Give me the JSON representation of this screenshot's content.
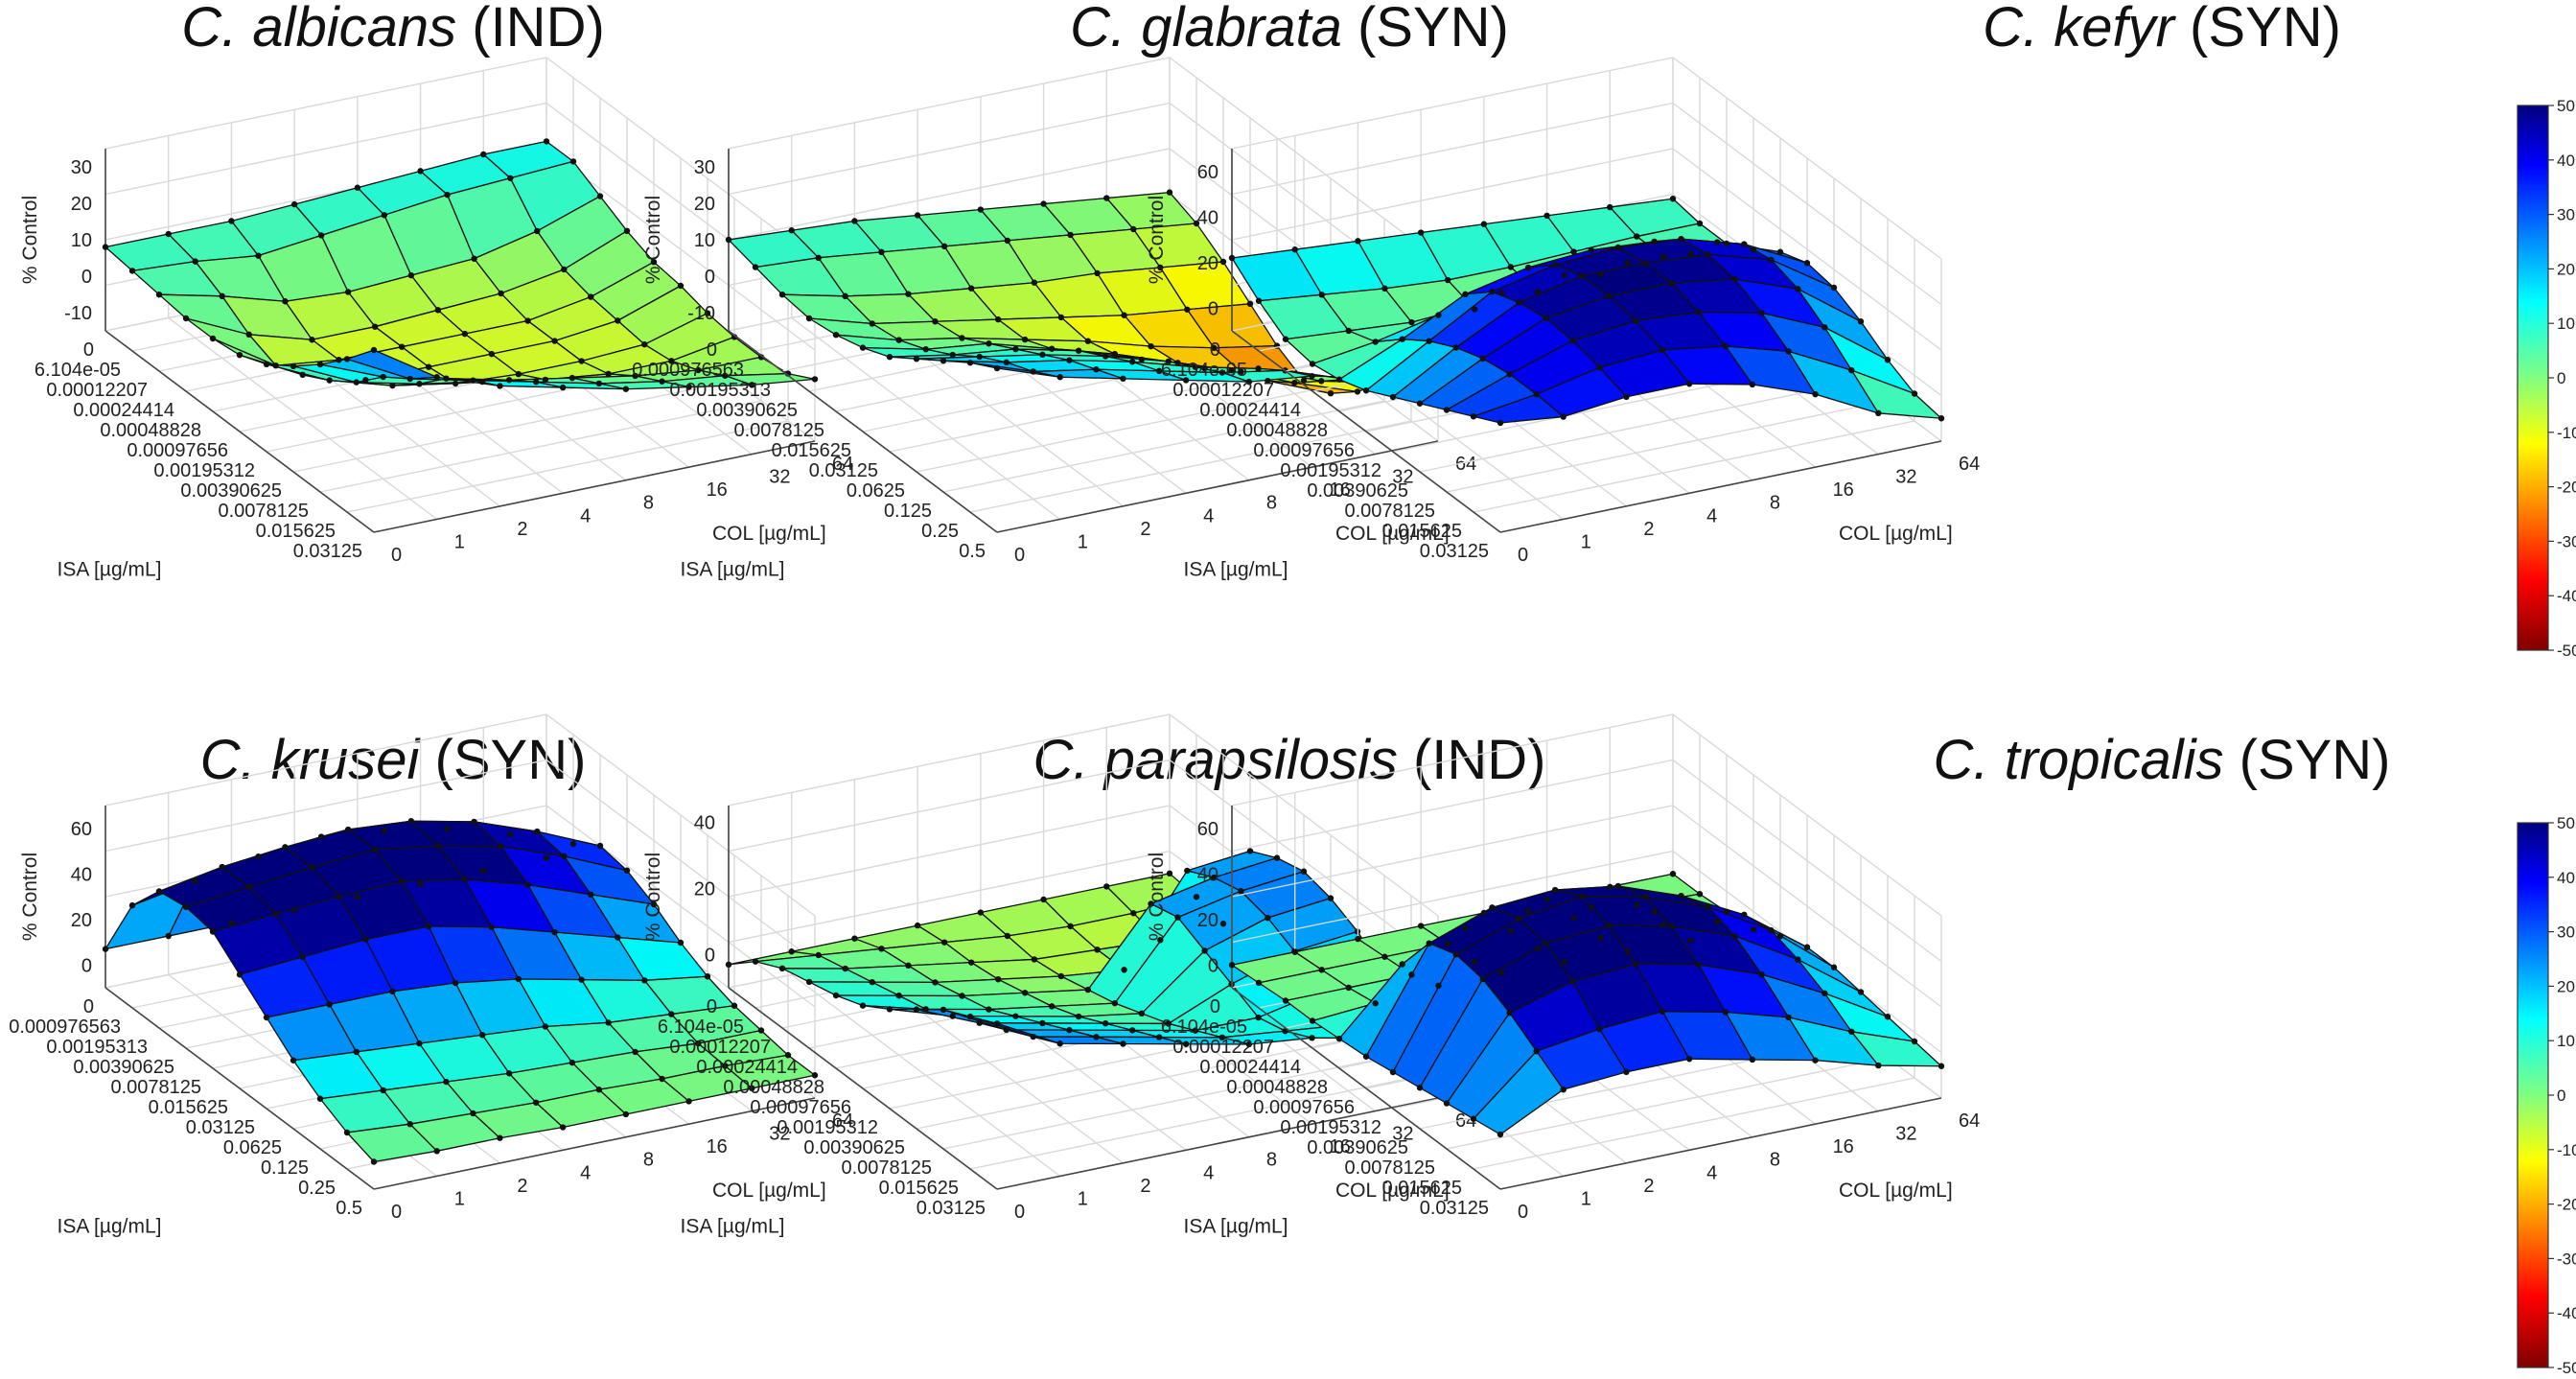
{
  "figure": {
    "colorbar": {
      "min": -50,
      "max": 50,
      "ticks": [
        50,
        40,
        30,
        20,
        10,
        0,
        -10,
        -20,
        -30,
        -40,
        -50
      ]
    }
  },
  "chart_data": [
    {
      "type": "surface3d",
      "title_species": "C. albicans",
      "title_code": "(IND)",
      "zlabel": "% Control",
      "xlabel": "ISA [µg/mL]",
      "ylabel": "COL [µg/mL]",
      "x_ticks": [
        "0",
        "6.104e-05",
        "0.00012207",
        "0.00024414",
        "0.00048828",
        "0.00097656",
        "0.00195312",
        "0.00390625",
        "0.0078125",
        "0.015625",
        "0.03125"
      ],
      "y_ticks": [
        "0",
        "1",
        "2",
        "4",
        "8",
        "16",
        "32",
        "64"
      ],
      "z_ticks": [
        30,
        20,
        10,
        0,
        -10
      ],
      "z_range": [
        -15,
        35
      ],
      "z": [
        [
          8,
          7,
          6,
          5,
          5,
          6,
          9,
          14,
          20,
          27,
          35
        ],
        [
          8,
          6,
          2,
          -3,
          -6,
          -3,
          1,
          6,
          13,
          18,
          24
        ],
        [
          8,
          4,
          -3,
          -8,
          -8,
          -8,
          -4,
          2,
          9,
          14,
          18
        ],
        [
          9,
          6,
          -4,
          -8,
          -8,
          -8,
          -7,
          -1,
          5,
          10,
          14
        ],
        [
          10,
          8,
          -3,
          -7,
          -8,
          -8,
          -8,
          -4,
          2,
          6,
          10
        ],
        [
          11,
          10,
          -2,
          -6,
          -8,
          -8,
          -8,
          -6,
          -1,
          3,
          7
        ],
        [
          12,
          11,
          2,
          -3,
          -5,
          -6,
          -7,
          -6,
          -3,
          1,
          4
        ],
        [
          12,
          12,
          8,
          4,
          1,
          0,
          -2,
          -3,
          -3,
          -2,
          2
        ]
      ]
    },
    {
      "type": "surface3d",
      "title_species": "C. glabrata",
      "title_code": "(SYN)",
      "zlabel": "% Control",
      "xlabel": "ISA [µg/mL]",
      "ylabel": "COL [µg/mL]",
      "x_ticks": [
        "0",
        "0.000976563",
        "0.00195313",
        "0.00390625",
        "0.0078125",
        "0.015625",
        "0.03125",
        "0.0625",
        "0.125",
        "0.25",
        "0.5"
      ],
      "y_ticks": [
        "0",
        "1",
        "2",
        "4",
        "8",
        "16",
        "32",
        "64"
      ],
      "z_ticks": [
        30,
        20,
        10,
        0,
        -10
      ],
      "z_range": [
        -15,
        35
      ],
      "z": [
        [
          10,
          8,
          6,
          5,
          6,
          8,
          11,
          16,
          21,
          26,
          30
        ],
        [
          9,
          7,
          2,
          0,
          1,
          4,
          8,
          13,
          17,
          20,
          24
        ],
        [
          8,
          5,
          -1,
          -3,
          -2,
          2,
          6,
          10,
          14,
          17,
          20
        ],
        [
          6,
          3,
          -3,
          -6,
          -6,
          -3,
          2,
          6,
          10,
          13,
          16
        ],
        [
          4,
          1,
          -5,
          -9,
          -10,
          -8,
          -4,
          1,
          5,
          9,
          12
        ],
        [
          2,
          -1,
          -6,
          -12,
          -15,
          -14,
          -10,
          -5,
          1,
          6,
          10
        ],
        [
          0,
          -3,
          -8,
          -14,
          -19,
          -20,
          -17,
          -12,
          -6,
          0,
          6
        ],
        [
          -2,
          -5,
          -10,
          -16,
          -22,
          -26,
          -24,
          -18,
          -10,
          -3,
          4
        ]
      ]
    },
    {
      "type": "surface3d",
      "title_species": "C. kefyr",
      "title_code": "(SYN)",
      "zlabel": "% Control",
      "xlabel": "ISA [µg/mL]",
      "ylabel": "COL [µg/mL]",
      "x_ticks": [
        "0",
        "6.104e-05",
        "0.00012207",
        "0.00024414",
        "0.00048828",
        "0.00097656",
        "0.00195312",
        "0.00390625",
        "0.0078125",
        "0.015625",
        "0.03125"
      ],
      "y_ticks": [
        "0",
        "1",
        "2",
        "4",
        "8",
        "16",
        "32",
        "64"
      ],
      "z_ticks": [
        60,
        40,
        20,
        0
      ],
      "z_range": [
        -10,
        70
      ],
      "z": [
        [
          22,
          12,
          4,
          2,
          4,
          8,
          14,
          20,
          26,
          32,
          38
        ],
        [
          20,
          9,
          2,
          6,
          16,
          24,
          30,
          34,
          36,
          36,
          35
        ],
        [
          18,
          6,
          0,
          12,
          30,
          40,
          44,
          46,
          45,
          42,
          38
        ],
        [
          16,
          4,
          0,
          16,
          36,
          46,
          50,
          50,
          48,
          44,
          38
        ],
        [
          14,
          4,
          2,
          18,
          38,
          48,
          50,
          50,
          46,
          40,
          32
        ],
        [
          12,
          5,
          4,
          18,
          36,
          46,
          48,
          46,
          40,
          32,
          22
        ],
        [
          10,
          6,
          6,
          16,
          30,
          38,
          40,
          36,
          28,
          18,
          8
        ],
        [
          8,
          6,
          6,
          12,
          20,
          24,
          22,
          16,
          8,
          2,
          0
        ]
      ]
    },
    {
      "type": "surface3d",
      "title_species": "C. krusei",
      "title_code": "(SYN)",
      "zlabel": "% Control",
      "xlabel": "ISA [µg/mL]",
      "ylabel": "COL [µg/mL]",
      "x_ticks": [
        "0",
        "0.000976563",
        "0.00195313",
        "0.00390625",
        "0.0078125",
        "0.015625",
        "0.03125",
        "0.0625",
        "0.125",
        "0.25",
        "0.5"
      ],
      "y_ticks": [
        "0",
        "1",
        "2",
        "4",
        "8",
        "16",
        "32",
        "64"
      ],
      "z_ticks": [
        60,
        40,
        20,
        0
      ],
      "z_range": [
        -10,
        70
      ],
      "z": [
        [
          7,
          35,
          50,
          52,
          50,
          40,
          30,
          20,
          12,
          6,
          2
        ],
        [
          7,
          40,
          55,
          55,
          52,
          42,
          30,
          18,
          10,
          4,
          1
        ],
        [
          7,
          45,
          58,
          58,
          54,
          44,
          30,
          16,
          8,
          3,
          1
        ],
        [
          7,
          48,
          60,
          60,
          55,
          44,
          28,
          14,
          6,
          2,
          0
        ],
        [
          7,
          45,
          58,
          56,
          50,
          38,
          24,
          12,
          5,
          2,
          0
        ],
        [
          7,
          40,
          52,
          50,
          42,
          30,
          18,
          8,
          4,
          1,
          0
        ],
        [
          7,
          32,
          42,
          40,
          32,
          22,
          12,
          6,
          2,
          1,
          0
        ],
        [
          7,
          22,
          30,
          28,
          22,
          14,
          8,
          4,
          2,
          0,
          0
        ]
      ]
    },
    {
      "type": "surface3d",
      "title_species": "C. parapsilosis",
      "title_code": "(IND)",
      "zlabel": "% Control",
      "xlabel": "ISA [µg/mL]",
      "ylabel": "COL [µg/mL]",
      "x_ticks": [
        "0",
        "6.104e-05",
        "0.00012207",
        "0.00024414",
        "0.00048828",
        "0.00097656",
        "0.00195312",
        "0.00390625",
        "0.0078125",
        "0.015625",
        "0.03125"
      ],
      "y_ticks": [
        "0",
        "1",
        "2",
        "4",
        "8",
        "16",
        "32",
        "64"
      ],
      "z_ticks": [
        40,
        20,
        0
      ],
      "z_range": [
        -10,
        45
      ],
      "z": [
        [
          -3,
          4,
          8,
          10,
          12,
          15,
          20,
          26,
          32,
          36,
          40
        ],
        [
          -3,
          2,
          4,
          6,
          8,
          10,
          14,
          18,
          22,
          26,
          30
        ],
        [
          -3,
          0,
          1,
          2,
          4,
          6,
          10,
          14,
          18,
          22,
          26
        ],
        [
          -3,
          -2,
          -2,
          -1,
          1,
          3,
          6,
          10,
          14,
          18,
          22
        ],
        [
          -3,
          -4,
          -5,
          -4,
          -2,
          0,
          3,
          6,
          10,
          14,
          18
        ],
        [
          -3,
          -5,
          -6,
          -6,
          20,
          22,
          18,
          14,
          10,
          12,
          16
        ],
        [
          -3,
          -5,
          -7,
          20,
          24,
          26,
          24,
          20,
          14,
          10,
          12
        ],
        [
          -3,
          -4,
          -6,
          22,
          26,
          28,
          26,
          22,
          16,
          8,
          4
        ]
      ]
    },
    {
      "type": "surface3d",
      "title_species": "C. tropicalis",
      "title_code": "(SYN)",
      "zlabel": "% Control",
      "xlabel": "ISA [µg/mL]",
      "ylabel": "COL [µg/mL]",
      "x_ticks": [
        "0",
        "6.104e-05",
        "0.00012207",
        "0.00024414",
        "0.00048828",
        "0.00097656",
        "0.00195312",
        "0.00390625",
        "0.0078125",
        "0.015625",
        "0.03125"
      ],
      "y_ticks": [
        "0",
        "1",
        "2",
        "4",
        "8",
        "16",
        "32",
        "64"
      ],
      "z_ticks": [
        60,
        40,
        20,
        0
      ],
      "z_range": [
        -10,
        70
      ],
      "z": [
        [
          0,
          1,
          2,
          2,
          3,
          4,
          6,
          8,
          10,
          12,
          14
        ],
        [
          0,
          1,
          2,
          4,
          30,
          48,
          52,
          50,
          44,
          36,
          28
        ],
        [
          0,
          1,
          2,
          6,
          40,
          58,
          62,
          60,
          52,
          40,
          30
        ],
        [
          0,
          1,
          2,
          6,
          42,
          60,
          66,
          62,
          54,
          42,
          30
        ],
        [
          0,
          1,
          2,
          5,
          38,
          56,
          60,
          56,
          48,
          36,
          24
        ],
        [
          0,
          1,
          1,
          4,
          30,
          46,
          50,
          46,
          38,
          28,
          18
        ],
        [
          0,
          1,
          1,
          3,
          20,
          32,
          34,
          30,
          24,
          16,
          10
        ],
        [
          0,
          0,
          1,
          2,
          8,
          12,
          12,
          10,
          8,
          6,
          4
        ]
      ]
    }
  ]
}
